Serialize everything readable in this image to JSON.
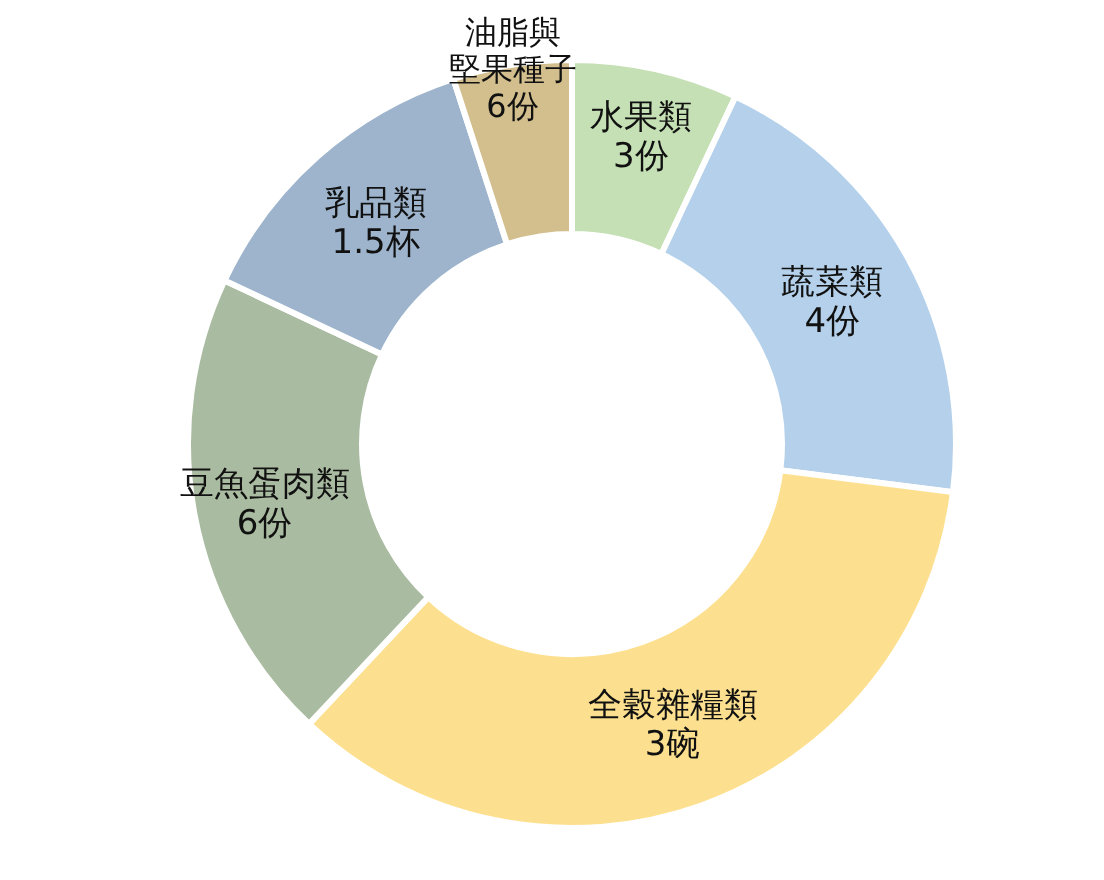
{
  "chart_data": {
    "type": "donut",
    "categories": [
      "水果類",
      "蔬菜類",
      "全穀雜糧類",
      "豆魚蛋肉類",
      "乳品類",
      "油脂與堅果種子"
    ],
    "values": [
      7,
      20,
      35,
      20,
      13,
      5
    ],
    "colors": [
      "#c5e0b4",
      "#b4d0ea",
      "#fde08f",
      "#a9bba0",
      "#9db4cc",
      "#d3bf8d"
    ],
    "annotations": [
      "3份",
      "4份",
      "3碗",
      "6份",
      "1.5杯",
      "6份"
    ]
  }
}
